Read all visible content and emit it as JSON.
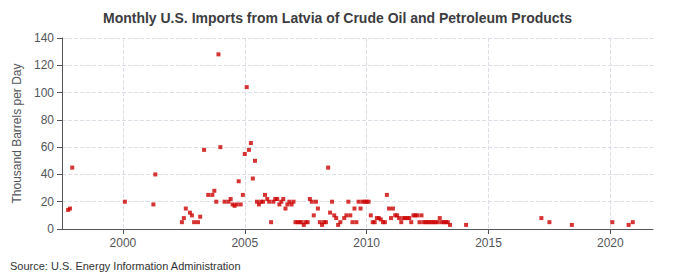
{
  "chart_data": {
    "type": "scatter",
    "title": "Monthly U.S. Imports from Latvia of Crude Oil and Petroleum Products",
    "ylabel": "Thousand Barrels per Day",
    "annotations": [
      "Source: U.S. Energy Information Administration"
    ],
    "xlim": [
      1997.5,
      2021.75
    ],
    "ylim": [
      0,
      140
    ],
    "xticks": [
      2000,
      2005,
      2010,
      2015,
      2020
    ],
    "yticks": [
      0,
      20,
      40,
      60,
      80,
      100,
      120,
      140
    ],
    "grid": true,
    "color": "#cc0000",
    "marker": "square",
    "x": [
      1997.75,
      1997.83,
      1997.92,
      2000.08,
      2001.25,
      2001.33,
      2002.42,
      2002.5,
      2002.58,
      2002.75,
      2002.83,
      2002.92,
      2003.08,
      2003.17,
      2003.33,
      2003.5,
      2003.67,
      2003.75,
      2003.83,
      2003.92,
      2004.0,
      2004.17,
      2004.33,
      2004.42,
      2004.5,
      2004.58,
      2004.67,
      2004.75,
      2004.83,
      2004.92,
      2005.0,
      2005.08,
      2005.17,
      2005.25,
      2005.33,
      2005.42,
      2005.5,
      2005.58,
      2005.67,
      2005.75,
      2005.83,
      2005.92,
      2006.0,
      2006.08,
      2006.17,
      2006.25,
      2006.33,
      2006.42,
      2006.5,
      2006.58,
      2006.67,
      2006.75,
      2006.83,
      2006.92,
      2007.0,
      2007.08,
      2007.17,
      2007.25,
      2007.33,
      2007.42,
      2007.5,
      2007.58,
      2007.67,
      2007.75,
      2007.83,
      2007.92,
      2008.0,
      2008.08,
      2008.17,
      2008.25,
      2008.33,
      2008.42,
      2008.5,
      2008.58,
      2008.67,
      2008.75,
      2008.83,
      2008.92,
      2009.08,
      2009.17,
      2009.25,
      2009.33,
      2009.42,
      2009.5,
      2009.58,
      2009.67,
      2009.75,
      2009.83,
      2009.92,
      2010.0,
      2010.08,
      2010.17,
      2010.25,
      2010.33,
      2010.42,
      2010.5,
      2010.58,
      2010.67,
      2010.75,
      2010.83,
      2010.92,
      2011.0,
      2011.08,
      2011.17,
      2011.25,
      2011.33,
      2011.42,
      2011.5,
      2011.58,
      2011.67,
      2011.75,
      2011.83,
      2011.92,
      2012.0,
      2012.08,
      2012.17,
      2012.25,
      2012.33,
      2012.42,
      2012.5,
      2012.58,
      2012.67,
      2012.75,
      2012.83,
      2012.92,
      2013.0,
      2013.08,
      2013.17,
      2013.25,
      2013.33,
      2013.42,
      2014.08,
      2017.17,
      2017.5,
      2018.42,
      2020.08,
      2020.75,
      2020.92
    ],
    "values": [
      14,
      15,
      45,
      20,
      18,
      40,
      5,
      8,
      15,
      12,
      10,
      5,
      5,
      9,
      58,
      25,
      25,
      28,
      20,
      128,
      60,
      20,
      20,
      22,
      18,
      17,
      18,
      35,
      18,
      25,
      55,
      104,
      58,
      63,
      37,
      50,
      20,
      18,
      20,
      20,
      25,
      22,
      20,
      5,
      20,
      22,
      22,
      18,
      20,
      22,
      15,
      18,
      20,
      18,
      20,
      5,
      5,
      5,
      5,
      3,
      5,
      5,
      22,
      20,
      10,
      20,
      15,
      5,
      3,
      5,
      5,
      45,
      12,
      20,
      10,
      8,
      3,
      5,
      8,
      10,
      20,
      10,
      5,
      15,
      5,
      20,
      15,
      20,
      20,
      20,
      20,
      10,
      5,
      5,
      8,
      8,
      7,
      5,
      5,
      25,
      15,
      8,
      15,
      10,
      10,
      8,
      5,
      8,
      8,
      8,
      8,
      5,
      10,
      10,
      10,
      5,
      10,
      5,
      5,
      5,
      5,
      5,
      5,
      5,
      5,
      8,
      5,
      5,
      5,
      5,
      3,
      3,
      8,
      5,
      3,
      5,
      3,
      5
    ]
  }
}
